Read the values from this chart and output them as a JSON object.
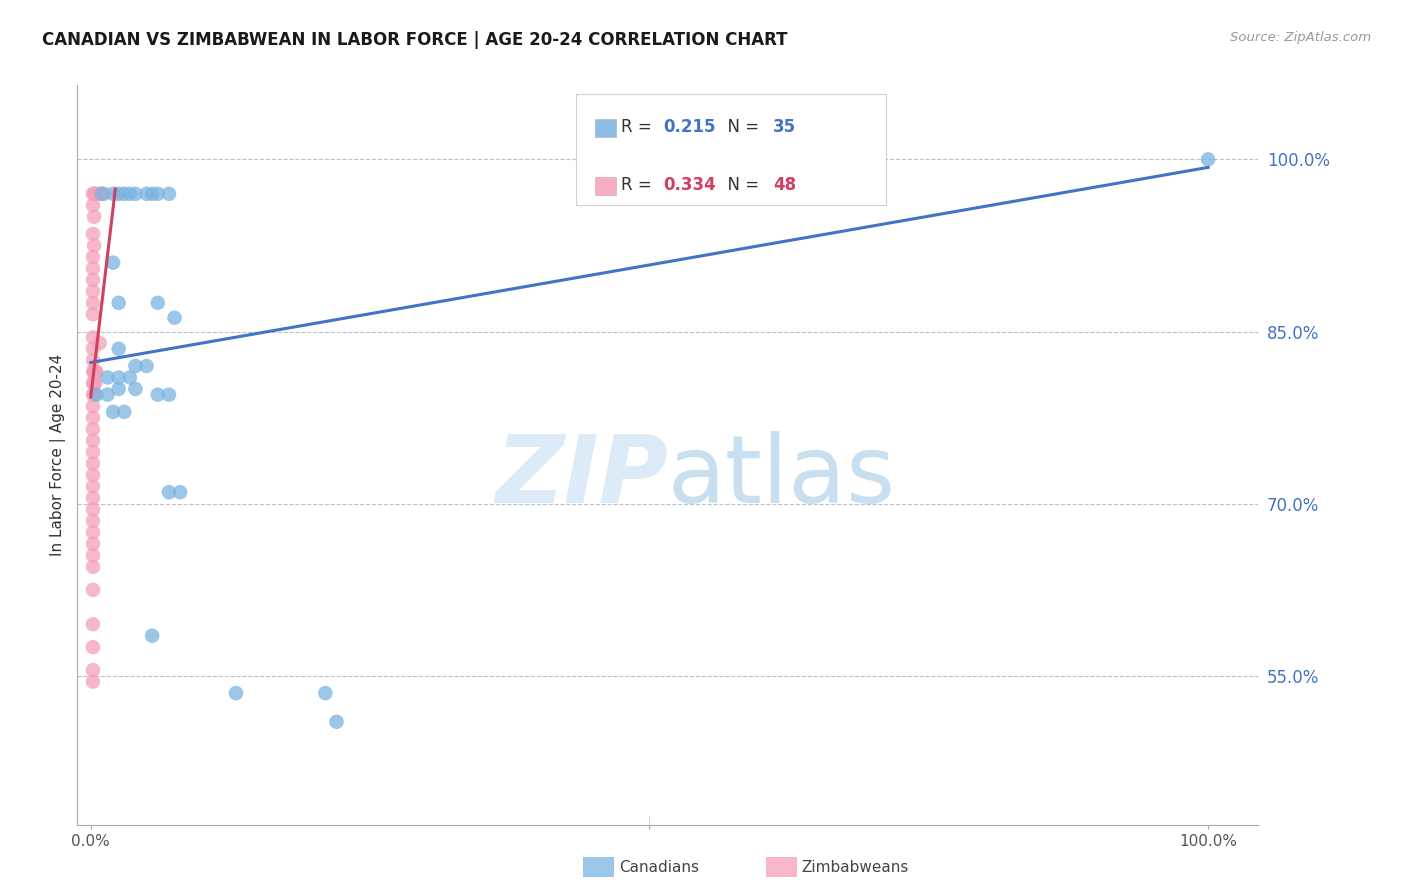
{
  "title": "CANADIAN VS ZIMBABWEAN IN LABOR FORCE | AGE 20-24 CORRELATION CHART",
  "source": "Source: ZipAtlas.com",
  "ylabel": "In Labor Force | Age 20-24",
  "ytick_labels": [
    "100.0%",
    "85.0%",
    "70.0%",
    "55.0%"
  ],
  "ytick_values": [
    1.0,
    0.85,
    0.7,
    0.55
  ],
  "canadian_color": "#7ab3e0",
  "zimbabwean_color": "#f4a0b8",
  "trendline_canadian_color": "#4472c4",
  "trendline_zimbabwean_color": "#d04060",
  "canadian_points": [
    [
      0.01,
      0.97
    ],
    [
      0.02,
      0.97
    ],
    [
      0.025,
      0.97
    ],
    [
      0.03,
      0.97
    ],
    [
      0.035,
      0.97
    ],
    [
      0.04,
      0.97
    ],
    [
      0.05,
      0.97
    ],
    [
      0.055,
      0.97
    ],
    [
      0.06,
      0.97
    ],
    [
      0.07,
      0.97
    ],
    [
      0.02,
      0.91
    ],
    [
      0.025,
      0.875
    ],
    [
      0.06,
      0.875
    ],
    [
      0.075,
      0.862
    ],
    [
      0.025,
      0.835
    ],
    [
      0.04,
      0.82
    ],
    [
      0.05,
      0.82
    ],
    [
      0.015,
      0.81
    ],
    [
      0.025,
      0.81
    ],
    [
      0.035,
      0.81
    ],
    [
      0.025,
      0.8
    ],
    [
      0.04,
      0.8
    ],
    [
      0.06,
      0.795
    ],
    [
      0.07,
      0.795
    ],
    [
      0.02,
      0.78
    ],
    [
      0.03,
      0.78
    ],
    [
      0.07,
      0.71
    ],
    [
      0.08,
      0.71
    ],
    [
      0.055,
      0.585
    ],
    [
      0.13,
      0.535
    ],
    [
      0.21,
      0.535
    ],
    [
      0.22,
      0.51
    ],
    [
      0.005,
      0.795
    ],
    [
      0.015,
      0.795
    ],
    [
      1.0,
      1.0
    ]
  ],
  "zimbabwean_points": [
    [
      0.002,
      0.97
    ],
    [
      0.003,
      0.97
    ],
    [
      0.004,
      0.97
    ],
    [
      0.002,
      0.96
    ],
    [
      0.003,
      0.95
    ],
    [
      0.002,
      0.935
    ],
    [
      0.003,
      0.925
    ],
    [
      0.002,
      0.915
    ],
    [
      0.002,
      0.905
    ],
    [
      0.002,
      0.895
    ],
    [
      0.002,
      0.885
    ],
    [
      0.002,
      0.875
    ],
    [
      0.002,
      0.865
    ],
    [
      0.002,
      0.845
    ],
    [
      0.002,
      0.835
    ],
    [
      0.002,
      0.825
    ],
    [
      0.002,
      0.815
    ],
    [
      0.003,
      0.815
    ],
    [
      0.004,
      0.815
    ],
    [
      0.005,
      0.815
    ],
    [
      0.002,
      0.805
    ],
    [
      0.003,
      0.805
    ],
    [
      0.004,
      0.805
    ],
    [
      0.002,
      0.795
    ],
    [
      0.003,
      0.795
    ],
    [
      0.002,
      0.785
    ],
    [
      0.002,
      0.775
    ],
    [
      0.002,
      0.765
    ],
    [
      0.002,
      0.755
    ],
    [
      0.002,
      0.745
    ],
    [
      0.002,
      0.735
    ],
    [
      0.002,
      0.725
    ],
    [
      0.002,
      0.715
    ],
    [
      0.002,
      0.705
    ],
    [
      0.002,
      0.695
    ],
    [
      0.002,
      0.685
    ],
    [
      0.002,
      0.675
    ],
    [
      0.002,
      0.665
    ],
    [
      0.002,
      0.655
    ],
    [
      0.002,
      0.645
    ],
    [
      0.002,
      0.625
    ],
    [
      0.002,
      0.595
    ],
    [
      0.002,
      0.575
    ],
    [
      0.002,
      0.555
    ],
    [
      0.002,
      0.545
    ],
    [
      0.008,
      0.97
    ],
    [
      0.012,
      0.97
    ],
    [
      0.008,
      0.84
    ]
  ],
  "canadian_trend_x": [
    0.0,
    1.0
  ],
  "canadian_trend_y": [
    0.823,
    0.993
  ],
  "zimbabwean_trend_x": [
    0.0,
    0.022
  ],
  "zimbabwean_trend_y": [
    0.793,
    0.974
  ],
  "xmin": -0.012,
  "xmax": 1.045,
  "ymin": 0.42,
  "ymax": 1.065,
  "legend_r_canadian": "R = 0.215",
  "legend_n_canadian": "N = 35",
  "legend_r_zimbabwean": "R = 0.334",
  "legend_n_zimbabwean": "N = 48",
  "watermark_zip": "ZIP",
  "watermark_atlas": "atlas",
  "bottom_legend_canadians": "Canadians",
  "bottom_legend_zimbabweans": "Zimbabweans"
}
